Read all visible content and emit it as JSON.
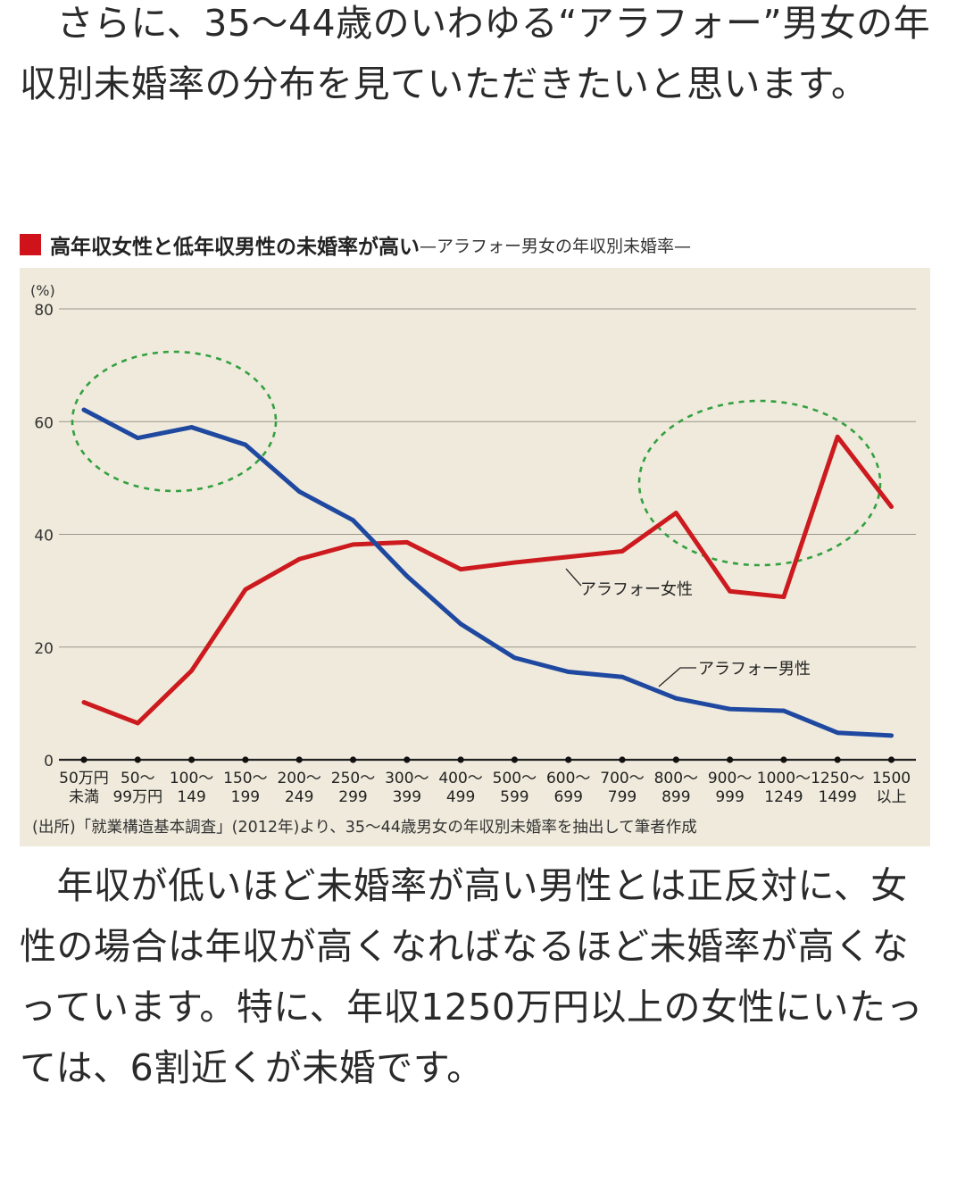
{
  "intro_text": "　さらに、35〜44歳のいわゆる“アラフォー”男女の年収別未婚率の分布を見ていただきたいと思います。",
  "figure": {
    "title_main": "高年収女性と低年収男性の未婚率が高い",
    "title_sub": "—アラフォー男女の年収別未婚率—",
    "source": "(出所)「就業構造基本調査」(2012年)より、35〜44歳男女の年収別未婚率を抽出して筆者作成"
  },
  "chart_data": {
    "type": "line",
    "title": "高年収女性と低年収男性の未婚率が高い",
    "ylabel": "(%)",
    "ylim": [
      0,
      80
    ],
    "yticks": [
      "0",
      "20",
      "40",
      "60",
      "80"
    ],
    "grid": true,
    "categories": [
      [
        "50万円",
        "未満"
      ],
      [
        "50〜",
        "99万円"
      ],
      [
        "100〜",
        "149"
      ],
      [
        "150〜",
        "199"
      ],
      [
        "200〜",
        "249"
      ],
      [
        "250〜",
        "299"
      ],
      [
        "300〜",
        "399"
      ],
      [
        "400〜",
        "499"
      ],
      [
        "500〜",
        "599"
      ],
      [
        "600〜",
        "699"
      ],
      [
        "700〜",
        "799"
      ],
      [
        "800〜",
        "899"
      ],
      [
        "900〜",
        "999"
      ],
      [
        "1000〜",
        "1249"
      ],
      [
        "1250〜",
        "1499"
      ],
      [
        "1500",
        "以上"
      ]
    ],
    "series": [
      {
        "name": "アラフォー女性",
        "color": "#cc1a1f",
        "values": [
          10.2,
          6.5,
          15.8,
          30.2,
          35.6,
          38.2,
          38.6,
          33.8,
          35.0,
          36.0,
          37.0,
          43.8,
          29.9,
          28.9,
          57.3,
          44.9
        ]
      },
      {
        "name": "アラフォー男性",
        "color": "#1f48a0",
        "values": [
          62.1,
          57.1,
          59.0,
          55.9,
          47.6,
          42.5,
          32.6,
          24.1,
          18.1,
          15.6,
          14.7,
          10.9,
          9.0,
          8.7,
          4.8,
          4.3
        ]
      }
    ],
    "annotations": [
      "アラフォー女性",
      "アラフォー男性"
    ]
  },
  "conclusion_text": "　年収が低いほど未婚率が高い男性とは正反対に、女性の場合は年収が高くなればなるほど未婚率が高くなっています。特に、年収1250万円以上の女性にいたっては、6割近くが未婚です。"
}
